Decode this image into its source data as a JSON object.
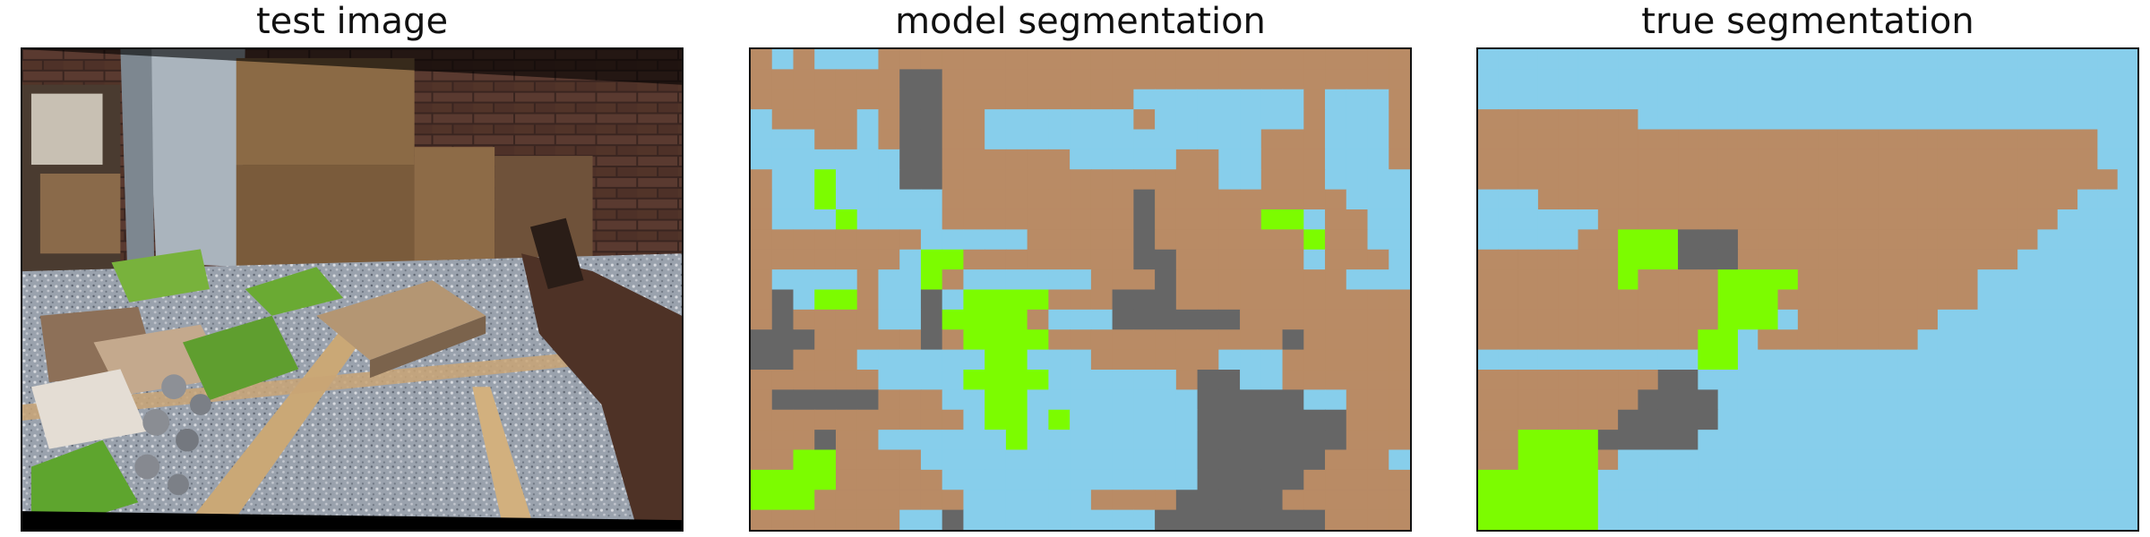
{
  "figure": {
    "titles": {
      "test": "test image",
      "model": "model segmentation",
      "true": "true segmentation"
    }
  },
  "colors": {
    "brown": "#b98b65",
    "blue": "#87ceeb",
    "gray": "#666666",
    "green": "#7cfc00"
  },
  "segmentation": {
    "palette": {
      "B": "brown",
      "L": "blue",
      "G": "gray",
      "N": "green"
    },
    "model_rows": [
      "BLBLLLBBBBBBBBBBBBBBBBBBBBBBBBB",
      "BBBBBBBGGBBBBBBBBBBBBBBBBBBBBBB",
      "BBBBBBBGGBBBBBBBBBLLLLLLLLBLLLB",
      "LBBBBLBGGBBLLLLLLLBLLLLLLLBLLLB",
      "LLLBBLBGGBBLLLLLLLLLLLLLBBBLLLB",
      "LLLLLLLGGBBBBBBLLLLLBBLLBBBLLLB",
      "BLLNLLLGGBBBBBBBBBBBBBLLBBBLLLL",
      "BLLNLLLLLBBBBBBBBBGBBBBBBBBBLLL",
      "BLLLNLLLLBBBBBBBBBGBBBBBNNLBBLL",
      "BBBBBBBBLLLLLBBBBBGBBBBBBBNBBLL",
      "BBBBBBBLNNBBBBBBBBGGBBBBBBLBBBL",
      "BLLLLBLLNBLLLLLLBBBGBBBBBBBBLLL",
      "BGLNNBLLGLNNNNBBBGGGBBBBBBBBBBB",
      "BGBBBBLLGNNNNBLLLGGGGGGBBBBBBBB",
      "GGGBBBBBGBNNNNBBBBBBBBBBBGBBBBB",
      "GGBBBLLLLLLNNLLLBBBBBBLLLBBBBBB",
      "BBBBBBLLLLNNNNLLLLLLBGGLLBBBBBB",
      "BGGGGGBBBLLNNLLLLLLLLGGGGGLLBBB",
      "BBBBBBBBBBLNNLNLLLLLLGGGGGGGBBB",
      "BBBGBBLLLLLLNLLLLLLLLGGGGGGGBBB",
      "BBNNBBBBLLLLLLLLLLLLLGGGGGGBBBL",
      "NNNNBBBBBLLLLLLLLLLLLGGGGGBBBBB",
      "NNNBBBBBBBLLLLLLBBBBGGGGGBBBBBB",
      "BBBBBBBLLGLLLLLLLLLGGGGGGGGBBBB"
    ],
    "true_rows": [
      "LLLLLLLLLLLLLLLLLLLLLLLLLLLLLLLLL",
      "LLLLLLLLLLLLLLLLLLLLLLLLLLLLLLLLL",
      "LLLLLLLLLLLLLLLLLLLLLLLLLLLLLLLLL",
      "BBBBBBBBLLLLLLLLLLLLLLLLLLLLLLLLL",
      "BBBBBBBBBBBBBBBBBBBBBBBBBBBBBBBLL",
      "BBBBBBBBBBBBBBBBBBBBBBBBBBBBBBBLL",
      "BBBBBBBBBBBBBBBBBBBBBBBBBBBBBBBBL",
      "LLLBBBBBBBBBBBBBBBBBBBBBBBBBBBLLL",
      "LLLLLLBBBBBBBBBBBBBBBBBBBBBBBLLLL",
      "LLLLLBBNNNGGGBBBBBBBBBBBBBBBLLLLL",
      "BBBBBBBNNNGGGBBBBBBBBBBBBBBLLLLLL",
      "BBBBBBBNBBBBNNNNBBBBBBBBBLLLLLLLL",
      "BBBBBBBBBBBBNNNBBBBBBBBBBLLLLLLLL",
      "BBBBBBBBBBBBNNNLBBBBBBBLLLLLLLLLL",
      "BBBBBBBBBBBNNLBBBBBBBBLLLLLLLLLLL",
      "LLLLLLLLLLLNNLLLLLLLLLLLLLLLLLLLL",
      "BBBBBBBBBGGLLLLLLLLLLLLLLLLLLLLLL",
      "BBBBBBBBGGGGLLLLLLLLLLLLLLLLLLLLL",
      "BBBBBBBGGGGGLLLLLLLLLLLLLLLLLLLLL",
      "BBNNNNGGGGGLLLLLLLLLLLLLLLLLLLLLL",
      "BBNNNNBLLLLLLLLLLLLLLLLLLLLLLLLLL",
      "NNNNNNLLLLLLLLLLLLLLLLLLLLLLLLLLL",
      "NNNNNNLLLLLLLLLLLLLLLLLLLLLLLLLLL",
      "NNNNNNLLLLLLLLLLLLLLLLLLLLLLLLLLL"
    ]
  }
}
